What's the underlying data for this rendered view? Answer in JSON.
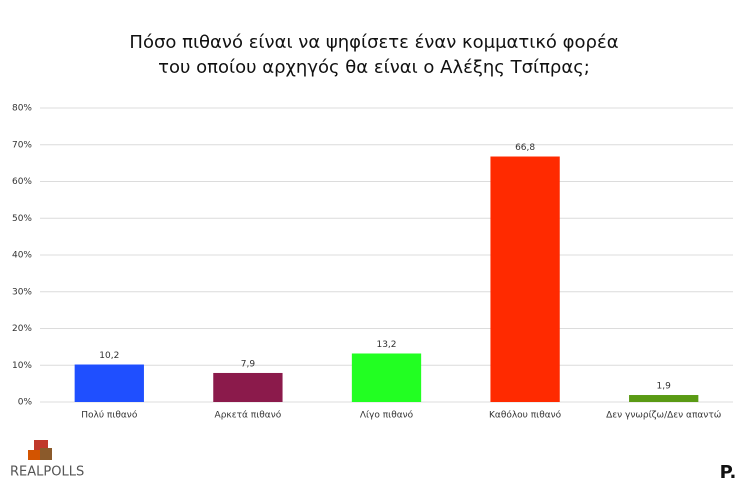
{
  "chart_data": {
    "type": "bar",
    "title": [
      "Πόσο πιθανό είναι να ψηφίσετε έναν κομματικό φορέα",
      "του οποίου αρχηγός θα είναι ο Αλέξης Τσίπρας;"
    ],
    "categories": [
      "Πολύ πιθανό",
      "Αρκετά πιθανό",
      "Λίγο πιθανό",
      "Καθόλου πιθανό",
      "Δεν γνωρίζω/Δεν απαντώ"
    ],
    "values": [
      10.2,
      7.9,
      13.2,
      66.8,
      1.9
    ],
    "value_labels": [
      "10,2",
      "7,9",
      "13,2",
      "66,8",
      "1,9"
    ],
    "colors": [
      "#1f4fff",
      "#8b1a4b",
      "#22ff22",
      "#ff2a00",
      "#5a9a14"
    ],
    "ylim": [
      0,
      80
    ],
    "yticks": [
      {
        "value": 0,
        "label": "0%"
      },
      {
        "value": 10,
        "label": "10%"
      },
      {
        "value": 20,
        "label": "20%"
      },
      {
        "value": 30,
        "label": "30%"
      },
      {
        "value": 40,
        "label": "40%"
      },
      {
        "value": 50,
        "label": "50%"
      },
      {
        "value": 60,
        "label": "60%"
      },
      {
        "value": 70,
        "label": "70%"
      },
      {
        "value": 80,
        "label": "80%"
      }
    ],
    "grid": true
  },
  "branding": {
    "source_logo": "REALPOLLS",
    "publisher_logo": "P."
  }
}
